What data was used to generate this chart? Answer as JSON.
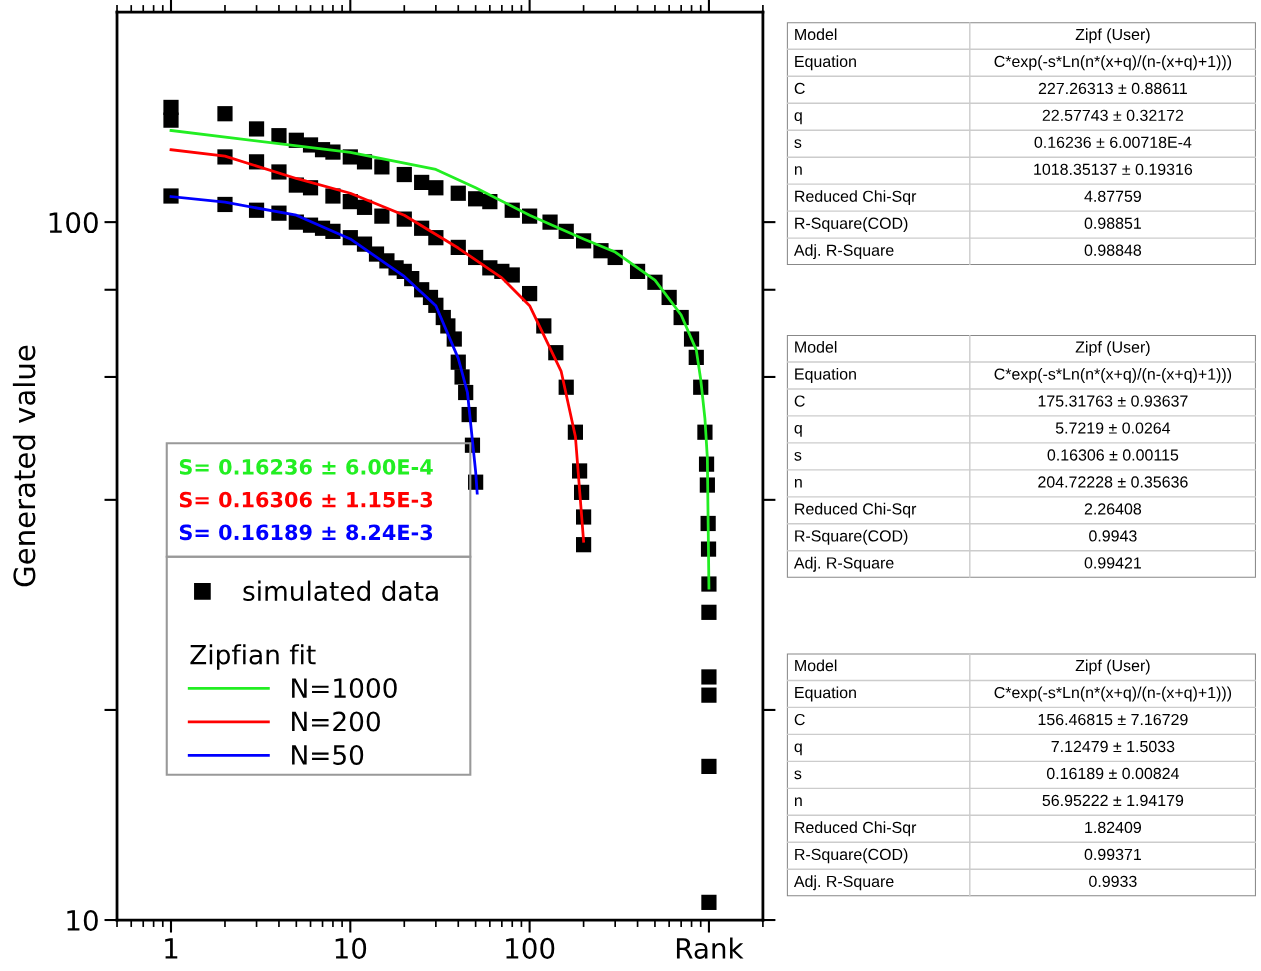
{
  "chart_data": [
    {
      "type": "line",
      "ylabel": "Generated value",
      "log": "xy",
      "xlim": [
        0.5,
        2000
      ],
      "ylim": [
        10,
        200
      ],
      "xticks": [
        1,
        10,
        100,
        {
          "value": 1000,
          "label": "Rank"
        }
      ],
      "yticks": [
        10,
        {
          "value": 20,
          "label": null
        },
        {
          "value": 40,
          "label": null
        },
        {
          "value": 60,
          "label": null
        },
        {
          "value": 80,
          "label": null
        },
        100
      ],
      "legend": "left",
      "legend_title": "Zipfian fit",
      "grid": false,
      "series": [
        {
          "name": "simulated data",
          "type": "scatter",
          "marker": "square",
          "color": "#000000",
          "x": [
            1,
            2,
            3,
            4,
            5,
            6,
            7,
            8,
            10,
            12,
            15,
            20,
            25,
            30,
            40,
            50,
            60,
            80,
            100,
            130,
            160,
            200,
            250,
            300,
            400,
            500,
            600,
            700,
            800,
            850,
            900,
            950,
            970,
            980,
            990,
            995,
            1000,
            1000,
            1000,
            1000,
            1000,
            1000,
            1,
            2,
            3,
            4,
            5,
            6,
            8,
            10,
            12,
            15,
            20,
            25,
            30,
            40,
            50,
            60,
            70,
            80,
            100,
            120,
            140,
            160,
            180,
            190,
            195,
            200,
            200,
            1,
            2,
            3,
            4,
            5,
            6,
            7,
            8,
            10,
            12,
            14,
            16,
            18,
            20,
            22,
            25,
            28,
            30,
            33,
            35,
            38,
            40,
            42,
            44,
            46,
            48,
            50
          ],
          "values": [
            146,
            143,
            136,
            133,
            131,
            129,
            127,
            126,
            124,
            122,
            120,
            117,
            114,
            112,
            110,
            108,
            107,
            104,
            102,
            100,
            97,
            94,
            91,
            89,
            85,
            82,
            78,
            73,
            68,
            64,
            58,
            50,
            45,
            42,
            37,
            34,
            30.3,
            27.6,
            22.3,
            21.0,
            16.6,
            10.6,
            140,
            124,
            122,
            118,
            113,
            112,
            109,
            107,
            105,
            102,
            101,
            98,
            95,
            92,
            89,
            86,
            85,
            84,
            79,
            71,
            65,
            58,
            50,
            44,
            41,
            37.8,
            34.5,
            109,
            106,
            104,
            103,
            100,
            99,
            98,
            97,
            95,
            93,
            90,
            88,
            86,
            85,
            83,
            80,
            78,
            76,
            73,
            71,
            68,
            63,
            60,
            57,
            53,
            47.9,
            42.4
          ]
        },
        {
          "name": "N=1000",
          "type": "line",
          "marker": "none",
          "line_style": "solid",
          "color": "#22ee22",
          "x": [
            1,
            10,
            30,
            50,
            100,
            200,
            300,
            500,
            700,
            850,
            900,
            950,
            980,
            1000
          ],
          "values": [
            135.3,
            125.9,
            119,
            112,
            102.3,
            94.6,
            90.6,
            82.6,
            73.6,
            65.6,
            59.5,
            52.3,
            45.9,
            29.9
          ]
        },
        {
          "name": "N=200",
          "type": "line",
          "marker": "none",
          "line_style": "solid",
          "color": "#ff0000",
          "x": [
            1,
            2,
            5,
            10,
            20,
            40,
            70,
            100,
            150,
            180,
            200
          ],
          "values": [
            127,
            124.3,
            115.5,
            110,
            102.3,
            91.8,
            83.2,
            75.9,
            61.1,
            49.3,
            34.9
          ]
        },
        {
          "name": "N=50",
          "type": "line",
          "marker": "none",
          "line_style": "solid",
          "color": "#0000ff",
          "x": [
            1,
            2,
            5,
            10,
            20,
            30,
            40,
            45,
            50,
            51
          ],
          "values": [
            108.8,
            106.8,
            102.3,
            94.6,
            83.6,
            75.9,
            63.8,
            57.0,
            43.9,
            40.9
          ]
        }
      ],
      "annotations": [
        "S= 0.16236 ± 6.00E-4",
        "S= 0.16306 ± 1.15E-3",
        "S= 0.16189 ± 8.24E-3"
      ]
    },
    {
      "type": "other",
      "categories": [
        "Model",
        "Equation",
        "C",
        "q",
        "s",
        "n",
        "Reduced Chi-Sqr",
        "R-Square(COD)",
        "Adj. R-Square"
      ],
      "annotations": [
        "Zipf (User)",
        "C*exp(-s*Ln(n*(x+q)/(n-(x+q)+1)))",
        "227.26313 ± 0.88611",
        "22.57743 ± 0.32172",
        "0.16236 ± 6.00718E-4",
        "1018.35137 ± 0.19316",
        "4.87759",
        "0.98851",
        "0.98848"
      ]
    },
    {
      "type": "other",
      "categories": [
        "Model",
        "Equation",
        "C",
        "q",
        "s",
        "n",
        "Reduced Chi-Sqr",
        "R-Square(COD)",
        "Adj. R-Square"
      ],
      "annotations": [
        "Zipf (User)",
        "C*exp(-s*Ln(n*(x+q)/(n-(x+q)+1)))",
        "175.31763 ± 0.93637",
        "5.7219 ± 0.0264",
        "0.16306 ± 0.00115",
        "204.72228 ± 0.35636",
        "2.26408",
        "0.9943",
        "0.99421"
      ]
    },
    {
      "type": "other",
      "categories": [
        "Model",
        "Equation",
        "C",
        "q",
        "s",
        "n",
        "Reduced Chi-Sqr",
        "R-Square(COD)",
        "Adj. R-Square"
      ],
      "annotations": [
        "Zipf (User)",
        "C*exp(-s*Ln(n*(x+q)/(n-(x+q)+1)))",
        "156.46815 ± 7.16729",
        "7.12479 ± 1.5033",
        "0.16189 ± 0.00824",
        "56.95222 ± 1.94179",
        "1.82409",
        "0.99371",
        "0.9933"
      ]
    }
  ]
}
